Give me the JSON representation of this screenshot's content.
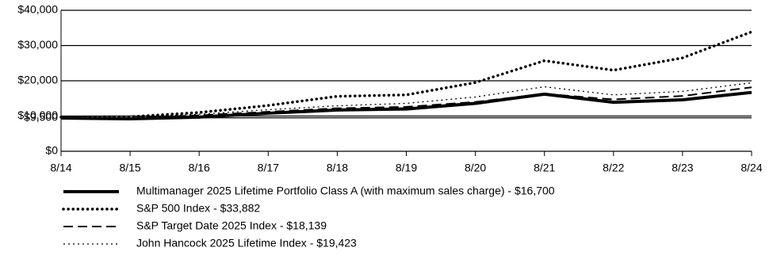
{
  "chart_data": {
    "type": "line",
    "categories": [
      "8/14",
      "8/15",
      "8/16",
      "8/17",
      "8/18",
      "8/19",
      "8/20",
      "8/21",
      "8/22",
      "8/23",
      "8/24"
    ],
    "series": [
      {
        "name": "Multimanager 2025 Lifetime Portfolio Class A (with maximum sales charge)  - $16,700",
        "color": "#000000",
        "line_style": "thick",
        "values": [
          9450,
          9200,
          9700,
          10800,
          11700,
          12000,
          13600,
          16200,
          13900,
          14600,
          16700
        ]
      },
      {
        "name": "S&P 500 Index - $33,882",
        "color": "#000000",
        "line_style": "dotted",
        "values": [
          9700,
          9800,
          11000,
          13000,
          15600,
          16000,
          19500,
          25700,
          23000,
          26500,
          33882
        ]
      },
      {
        "name": "S&P Target Date 2025 Index - $18,139",
        "color": "#000000",
        "line_style": "dashed",
        "values": [
          9600,
          9500,
          10200,
          11200,
          12200,
          12600,
          14000,
          16300,
          14700,
          15700,
          18139
        ]
      },
      {
        "name": "John Hancock 2025 Lifetime Index - $19,423",
        "color": "#000000",
        "line_style": "fine-dotted",
        "values": [
          9700,
          9700,
          10500,
          11800,
          12900,
          13600,
          15400,
          18300,
          16000,
          17000,
          19423
        ]
      }
    ],
    "ylim": [
      0,
      40000
    ],
    "yticks": [
      {
        "value": 0,
        "label": "$0"
      },
      {
        "value": 9500,
        "label": "$9,500"
      },
      {
        "value": 10000,
        "label": "$10,000"
      },
      {
        "value": 20000,
        "label": "$20,000"
      },
      {
        "value": 30000,
        "label": "$30,000"
      },
      {
        "value": 40000,
        "label": "$40,000"
      }
    ],
    "grid": true
  }
}
